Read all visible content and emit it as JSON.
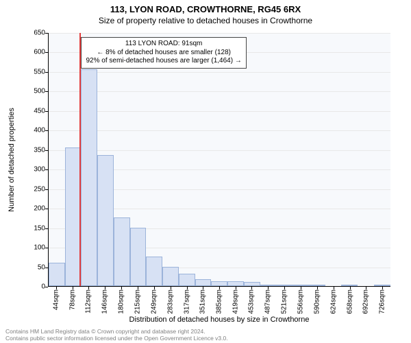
{
  "chart": {
    "type": "histogram",
    "title_address": "113, LYON ROAD, CROWTHORNE, RG45 6RX",
    "title_sub": "Size of property relative to detached houses in Crowthorne",
    "ylabel": "Number of detached properties",
    "xlabel": "Distribution of detached houses by size in Crowthorne",
    "background_color": "#f7f9fc",
    "grid_color": "#e8e8e8",
    "bar_fill": "#d7e1f4",
    "bar_border": "#9bb3da",
    "marker_line_color": "#e23b3b",
    "marker_value_sqm": 91,
    "ylim": [
      0,
      650
    ],
    "ytick_step": 50,
    "xlim_sqm": [
      27,
      743
    ],
    "xtick_start_sqm": 44,
    "xtick_step_sqm": 34,
    "xtick_suffix": "sqm",
    "xtick_positions": [
      44,
      78,
      112,
      146,
      180,
      215,
      249,
      283,
      317,
      351,
      385,
      419,
      453,
      487,
      521,
      556,
      590,
      624,
      658,
      692,
      726
    ],
    "bin_width_sqm": 34,
    "bins": [
      {
        "start": 27,
        "count": 60
      },
      {
        "start": 61,
        "count": 355
      },
      {
        "start": 95,
        "count": 555
      },
      {
        "start": 129,
        "count": 335
      },
      {
        "start": 163,
        "count": 175
      },
      {
        "start": 197,
        "count": 150
      },
      {
        "start": 231,
        "count": 75
      },
      {
        "start": 265,
        "count": 50
      },
      {
        "start": 299,
        "count": 32
      },
      {
        "start": 333,
        "count": 18
      },
      {
        "start": 367,
        "count": 12
      },
      {
        "start": 401,
        "count": 12
      },
      {
        "start": 435,
        "count": 10
      },
      {
        "start": 469,
        "count": 4
      },
      {
        "start": 503,
        "count": 2
      },
      {
        "start": 537,
        "count": 4
      },
      {
        "start": 571,
        "count": 3
      },
      {
        "start": 605,
        "count": 0
      },
      {
        "start": 639,
        "count": 2
      },
      {
        "start": 673,
        "count": 0
      },
      {
        "start": 707,
        "count": 2
      }
    ],
    "annotation": {
      "line1": "113 LYON ROAD: 91sqm",
      "line2": "← 8% of detached houses are smaller (128)",
      "line3": "92% of semi-detached houses are larger (1,464) →",
      "left_sqm": 95
    },
    "title_fontsize": 13,
    "subtitle_fontsize": 12,
    "axis_label_fontsize": 11,
    "tick_fontsize": 10
  },
  "footer": {
    "line1": "Contains HM Land Registry data © Crown copyright and database right 2024.",
    "line2": "Contains public sector information licensed under the Open Government Licence v3.0."
  }
}
